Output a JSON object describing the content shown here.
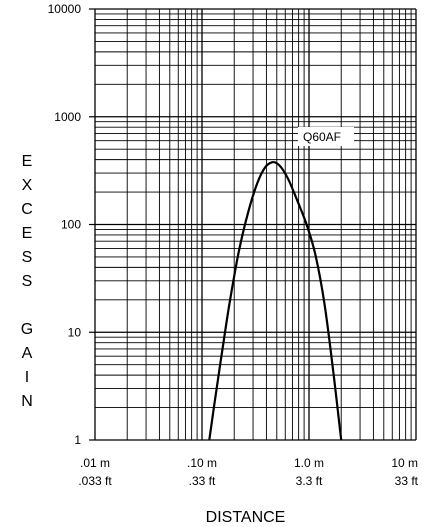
{
  "chart_data": {
    "type": "line",
    "title": "",
    "xlabel": "DISTANCE",
    "ylabel": "EXCESS GAIN",
    "xscale": "log",
    "yscale": "log",
    "xlim": [
      0.01,
      10
    ],
    "ylim": [
      1,
      10000
    ],
    "grid": true,
    "x_ticks": [
      {
        "value": 0.01,
        "label_m": ".01 m",
        "label_ft": ".033 ft"
      },
      {
        "value": 0.1,
        "label_m": ".10 m",
        "label_ft": ".33 ft"
      },
      {
        "value": 1,
        "label_m": "1.0 m",
        "label_ft": "3.3 ft"
      },
      {
        "value": 10,
        "label_m": "10 m",
        "label_ft": "33 ft"
      }
    ],
    "y_ticks": [
      {
        "value": 1,
        "label": "1"
      },
      {
        "value": 10,
        "label": "10"
      },
      {
        "value": 100,
        "label": "100"
      },
      {
        "value": 1000,
        "label": "1000"
      },
      {
        "value": 10000,
        "label": "10000"
      }
    ],
    "series": [
      {
        "name": "Q60AF",
        "x": [
          0.117,
          0.13,
          0.15,
          0.18,
          0.22,
          0.27,
          0.33,
          0.39,
          0.45,
          0.5,
          0.56,
          0.65,
          0.78,
          0.95,
          1.15,
          1.4,
          1.7,
          2.0
        ],
        "y": [
          1,
          2.1,
          5.5,
          18,
          55,
          130,
          245,
          340,
          378,
          370,
          330,
          255,
          165,
          100,
          52,
          18,
          4,
          1
        ]
      }
    ]
  }
}
